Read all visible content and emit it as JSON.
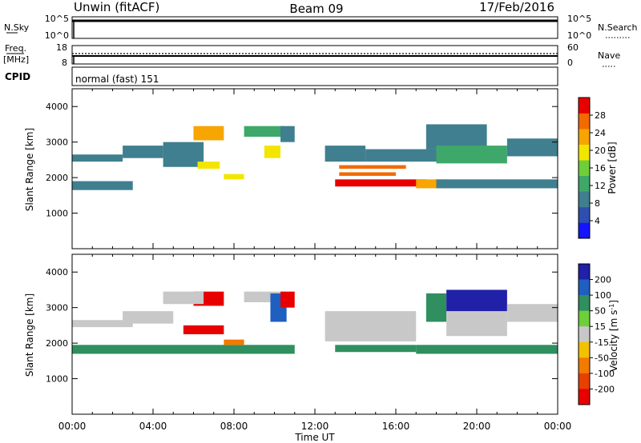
{
  "header": {
    "site": "Unwin (fitACF)",
    "beam": "Beam 09",
    "date": "17/Feb/2016"
  },
  "strip": {
    "nsky_label": "N.Sky",
    "nsky_ticks": [
      "10^5",
      "10^0"
    ],
    "nsearch_label": "N.Search",
    "nsearch_ticks": [
      "10^5",
      "10^0"
    ],
    "freq_label_1": "Freq.",
    "freq_label_2": "[MHz]",
    "freq_ticks": [
      "18",
      "8"
    ],
    "nave_label": "Nave",
    "nave_ticks": [
      "60",
      "0"
    ],
    "cpid_label": "CPID",
    "cpid_value": "normal (fast) 151"
  },
  "colors": {
    "power": [
      "#1414ff",
      "#2f4fb0",
      "#3f7f8f",
      "#3ea86a",
      "#6ecf3a",
      "#f2e600",
      "#f7a500",
      "#f26a00",
      "#e80000"
    ],
    "velocity": [
      "#2020a8",
      "#1f5fc0",
      "#2f8f5f",
      "#6ecf3a",
      "#c8c8c8",
      "#f2c200",
      "#f27a00",
      "#e84000",
      "#e80000"
    ]
  },
  "chart_data": [
    {
      "type": "heatmap",
      "quantity": "power",
      "ylabel": "Slant Range [km]",
      "x": [
        "00:00",
        "04:00",
        "08:00",
        "12:00",
        "16:00",
        "20:00",
        "00:00"
      ],
      "yticks": [
        1000,
        2000,
        3000,
        4000
      ],
      "ylim": [
        0,
        4500
      ],
      "colorbar_label": "Power [dB]",
      "colorbar_ticks": [
        4,
        8,
        12,
        16,
        20,
        24,
        28
      ],
      "colorbar_range": [
        0,
        32
      ],
      "cells": [
        {
          "t": [
            0.0,
            3.0
          ],
          "r": [
            1650,
            1900
          ],
          "v": 8
        },
        {
          "t": [
            0.0,
            2.5
          ],
          "r": [
            2450,
            2650
          ],
          "v": 8
        },
        {
          "t": [
            2.5,
            4.5
          ],
          "r": [
            2550,
            2900
          ],
          "v": 9
        },
        {
          "t": [
            4.5,
            6.5
          ],
          "r": [
            2300,
            3000
          ],
          "v": 9
        },
        {
          "t": [
            6.0,
            7.5
          ],
          "r": [
            3050,
            3450
          ],
          "v": 24
        },
        {
          "t": [
            6.2,
            7.3
          ],
          "r": [
            2250,
            2450
          ],
          "v": 18
        },
        {
          "t": [
            7.5,
            8.5
          ],
          "r": [
            1950,
            2100
          ],
          "v": 20
        },
        {
          "t": [
            8.5,
            10.5
          ],
          "r": [
            3150,
            3450
          ],
          "v": 14
        },
        {
          "t": [
            9.5,
            10.3
          ],
          "r": [
            2550,
            2900
          ],
          "v": 20
        },
        {
          "t": [
            10.3,
            11.0
          ],
          "r": [
            3000,
            3450
          ],
          "v": 10
        },
        {
          "t": [
            12.5,
            14.5
          ],
          "r": [
            2450,
            2900
          ],
          "v": 9
        },
        {
          "t": [
            13.2,
            16.5
          ],
          "r": [
            2250,
            2350
          ],
          "v": 27
        },
        {
          "t": [
            13.2,
            16.0
          ],
          "r": [
            2050,
            2150
          ],
          "v": 25
        },
        {
          "t": [
            13.0,
            17.5
          ],
          "r": [
            1750,
            1950
          ],
          "v": 29
        },
        {
          "t": [
            17.0,
            18.5
          ],
          "r": [
            1700,
            1950
          ],
          "v": 23
        },
        {
          "t": [
            14.5,
            18.0
          ],
          "r": [
            2450,
            2800
          ],
          "v": 10
        },
        {
          "t": [
            17.5,
            20.5
          ],
          "r": [
            2800,
            3500
          ],
          "v": 10
        },
        {
          "t": [
            18.0,
            21.5
          ],
          "r": [
            2400,
            2900
          ],
          "v": 14
        },
        {
          "t": [
            21.5,
            24.0
          ],
          "r": [
            2600,
            3100
          ],
          "v": 8
        },
        {
          "t": [
            18.0,
            24.0
          ],
          "r": [
            1700,
            1950
          ],
          "v": 8
        }
      ]
    },
    {
      "type": "heatmap",
      "quantity": "velocity",
      "ylabel": "Slant Range [km]",
      "xlabel": "Time UT",
      "x": [
        "00:00",
        "04:00",
        "08:00",
        "12:00",
        "16:00",
        "20:00",
        "00:00"
      ],
      "yticks": [
        1000,
        2000,
        3000,
        4000
      ],
      "ylim": [
        0,
        4500
      ],
      "colorbar_label": "Velocity [m s^-1]",
      "colorbar_ticks": [
        "200",
        "100",
        "50",
        "15",
        "-15",
        "-50",
        "-100",
        "-200"
      ],
      "colorbar_range": [
        -250,
        250
      ],
      "cells": [
        {
          "t": [
            0.0,
            11.0
          ],
          "r": [
            1700,
            1950
          ],
          "v": 40
        },
        {
          "t": [
            0.0,
            3.0
          ],
          "r": [
            2450,
            2650
          ],
          "v": 0
        },
        {
          "t": [
            2.5,
            5.0
          ],
          "r": [
            2550,
            2900
          ],
          "v": 0
        },
        {
          "t": [
            5.5,
            7.5
          ],
          "r": [
            2250,
            2500
          ],
          "v": -220
        },
        {
          "t": [
            6.0,
            7.5
          ],
          "r": [
            3050,
            3450
          ],
          "v": -220
        },
        {
          "t": [
            4.5,
            6.5
          ],
          "r": [
            3100,
            3450
          ],
          "v": 0
        },
        {
          "t": [
            7.5,
            8.5
          ],
          "r": [
            1950,
            2100
          ],
          "v": -60
        },
        {
          "t": [
            8.5,
            10.5
          ],
          "r": [
            3150,
            3450
          ],
          "v": 0
        },
        {
          "t": [
            9.8,
            10.6
          ],
          "r": [
            2600,
            3400
          ],
          "v": 120
        },
        {
          "t": [
            10.3,
            11.0
          ],
          "r": [
            3000,
            3450
          ],
          "v": -150
        },
        {
          "t": [
            12.5,
            17.0
          ],
          "r": [
            2050,
            2900
          ],
          "v": 0
        },
        {
          "t": [
            13.0,
            17.0
          ],
          "r": [
            1750,
            1950
          ],
          "v": 60
        },
        {
          "t": [
            17.0,
            24.0
          ],
          "r": [
            1700,
            1950
          ],
          "v": 60
        },
        {
          "t": [
            17.5,
            18.5
          ],
          "r": [
            2600,
            3400
          ],
          "v": 40
        },
        {
          "t": [
            18.5,
            21.5
          ],
          "r": [
            2200,
            2900
          ],
          "v": 0
        },
        {
          "t": [
            18.5,
            21.5
          ],
          "r": [
            2900,
            3500
          ],
          "v": 220
        },
        {
          "t": [
            21.5,
            24.0
          ],
          "r": [
            2600,
            3100
          ],
          "v": 0
        }
      ]
    }
  ],
  "tick_time_labels": [
    "00:00",
    "04:00",
    "08:00",
    "12:00",
    "16:00",
    "20:00",
    "00:00"
  ],
  "time_axis_label": "Time UT"
}
